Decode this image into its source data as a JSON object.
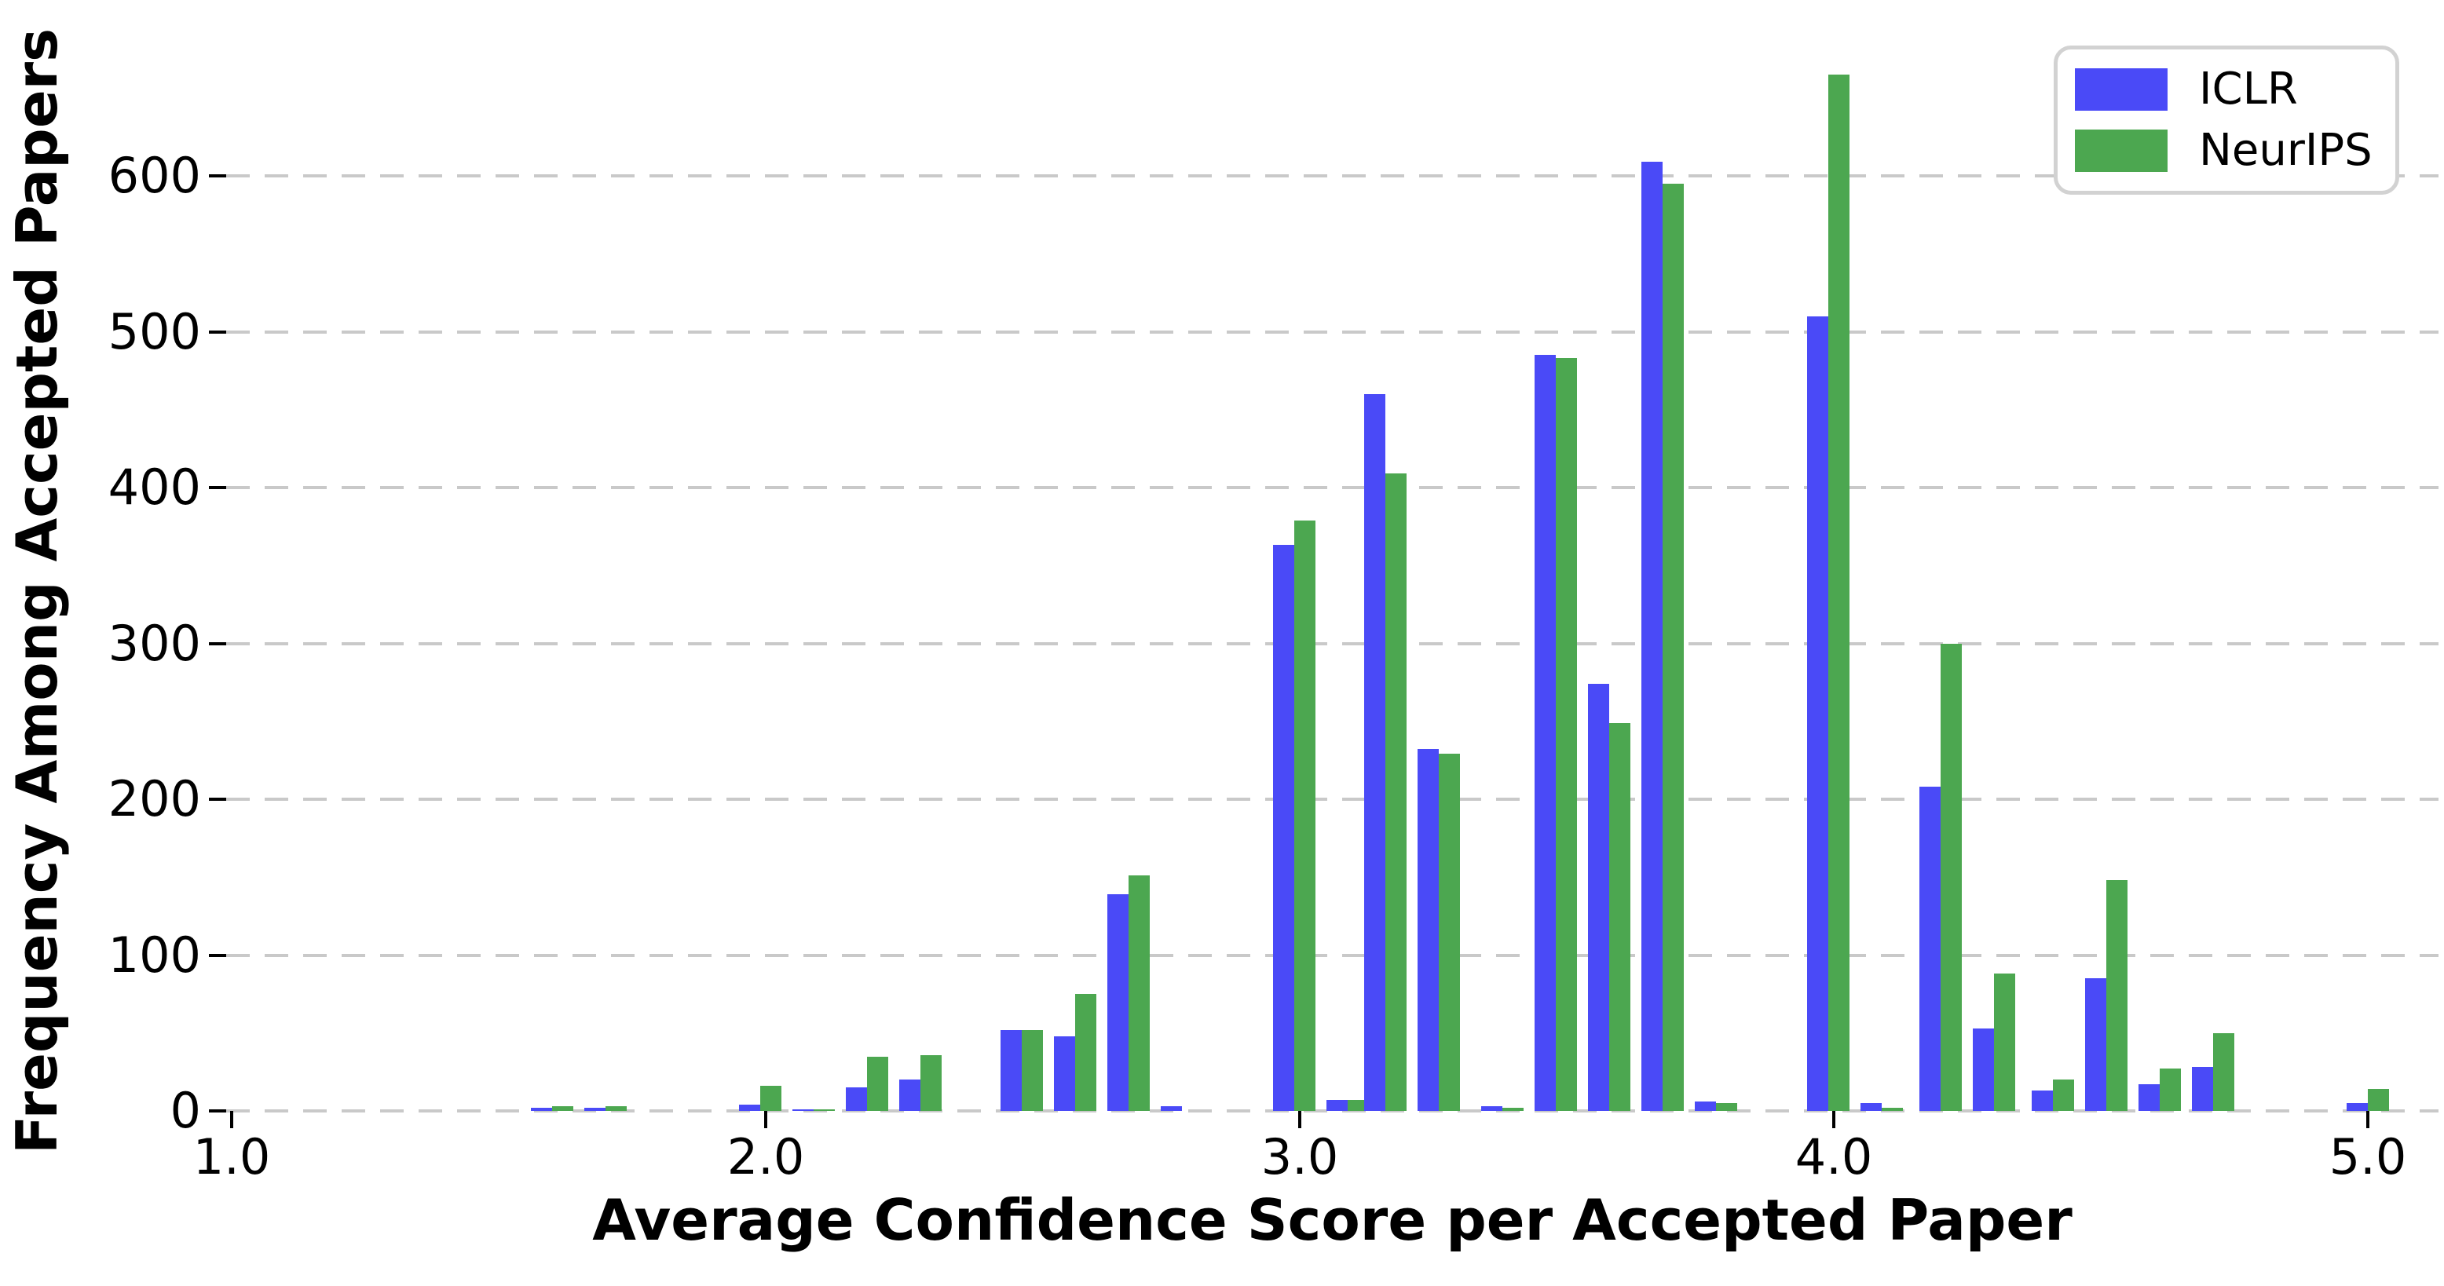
{
  "figure": {
    "xlabel": "Average Confidence Score per Accepted Paper",
    "ylabel": "Frequency Among Accepted Papers"
  },
  "legend": {
    "items": [
      {
        "label": "ICLR",
        "color": "#4a4af7"
      },
      {
        "label": "NeurIPS",
        "color": "#4ca750"
      }
    ]
  },
  "chart_data": {
    "type": "bar",
    "title": "",
    "xlabel": "Average Confidence Score per Accepted Paper",
    "ylabel": "Frequency Among Accepted Papers",
    "xlim": [
      0.99,
      5.13
    ],
    "ylim": [
      0,
      713
    ],
    "xticks": [
      1.0,
      2.0,
      3.0,
      4.0,
      5.0
    ],
    "xtick_labels": [
      "1.0",
      "2.0",
      "3.0",
      "4.0",
      "5.0"
    ],
    "yticks": [
      0,
      100,
      200,
      300,
      400,
      500,
      600
    ],
    "ytick_labels": [
      "0",
      "100",
      "200",
      "300",
      "400",
      "500",
      "600"
    ],
    "grid": {
      "axis": "y",
      "style": "dashed",
      "color": "#c9c9c9"
    },
    "legend_position": "upper-right",
    "bin_centers": [
      1.6,
      1.7,
      1.99,
      2.09,
      2.19,
      2.29,
      2.48,
      2.58,
      2.68,
      2.78,
      2.99,
      3.09,
      3.16,
      3.26,
      3.38,
      3.48,
      3.58,
      3.68,
      3.78,
      3.99,
      4.09,
      4.2,
      4.3,
      4.41,
      4.51,
      4.61,
      4.71,
      5.0
    ],
    "series": [
      {
        "name": "ICLR",
        "color": "#4a4af7",
        "values": [
          2,
          2,
          4,
          1,
          15,
          20,
          52,
          48,
          139,
          3,
          363,
          7,
          460,
          232,
          3,
          485,
          274,
          609,
          6,
          510,
          5,
          208,
          53,
          13,
          85,
          17,
          28,
          5
        ]
      },
      {
        "name": "NeurIPS",
        "color": "#4ca750",
        "values": [
          3,
          3,
          16,
          1,
          35,
          36,
          52,
          75,
          151,
          0,
          379,
          7,
          409,
          229,
          2,
          483,
          249,
          595,
          5,
          665,
          2,
          300,
          88,
          20,
          148,
          27,
          50,
          14
        ]
      }
    ]
  }
}
